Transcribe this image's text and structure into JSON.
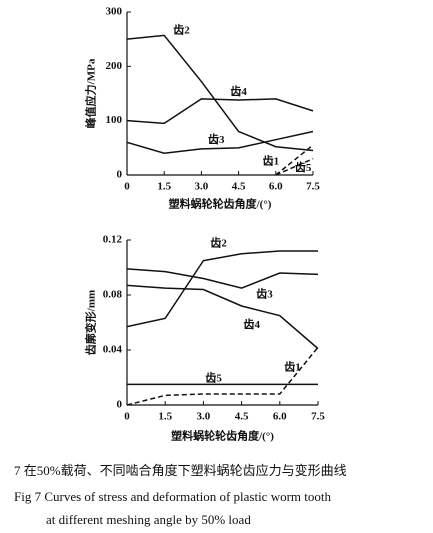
{
  "chart_data": [
    {
      "type": "line",
      "ylabel": "峰值应力/MPa",
      "xlabel": "塑料蜗轮轮齿角度/(°)",
      "x": [
        0,
        1.5,
        3,
        4.5,
        6,
        7.5
      ],
      "xlim": [
        0,
        7.5
      ],
      "xticks": [
        0,
        1.5,
        {
          "value": 3,
          "label": "3.0"
        },
        4.5,
        {
          "value": 6,
          "label": "6.0"
        },
        7.5
      ],
      "ylim": [
        0,
        300
      ],
      "yticks": [
        0,
        100,
        200,
        300
      ],
      "series": [
        {
          "name": "齿2",
          "color": "#111111",
          "dashed": false,
          "values": [
            250,
            257,
            172,
            80,
            52,
            45
          ]
        },
        {
          "name": "齿4",
          "color": "#111111",
          "dashed": false,
          "values": [
            100,
            95,
            140,
            138,
            140,
            118
          ]
        },
        {
          "name": "齿3",
          "color": "#111111",
          "dashed": false,
          "values": [
            60,
            40,
            48,
            50,
            65,
            80
          ]
        },
        {
          "name": "齿1",
          "color": "#111111",
          "dashed": true,
          "values": [
            null,
            null,
            null,
            null,
            0,
            55
          ]
        },
        {
          "name": "齿5",
          "color": "#111111",
          "dashed": true,
          "values": [
            null,
            null,
            null,
            null,
            0,
            30
          ]
        }
      ]
    },
    {
      "type": "line",
      "ylabel": "齿廓变形/mm",
      "xlabel": "塑料蜗轮轮齿角度/(°)",
      "x": [
        0,
        1.5,
        3,
        4.5,
        6,
        7.5
      ],
      "xlim": [
        0,
        7.5
      ],
      "xticks": [
        0,
        1.5,
        {
          "value": 3,
          "label": "3.0"
        },
        4.5,
        {
          "value": 6,
          "label": "6.0"
        },
        7.5
      ],
      "ylim": [
        0,
        0.12
      ],
      "yticks": [
        0,
        0.04,
        0.08,
        0.12
      ],
      "series": [
        {
          "name": "齿2",
          "color": "#111111",
          "dashed": false,
          "values": [
            0.057,
            0.063,
            0.105,
            0.11,
            0.112,
            0.112
          ]
        },
        {
          "name": "齿3",
          "color": "#111111",
          "dashed": false,
          "values": [
            0.099,
            0.097,
            0.092,
            0.085,
            0.096,
            0.095
          ]
        },
        {
          "name": "齿4",
          "color": "#111111",
          "dashed": false,
          "values": [
            0.087,
            0.085,
            0.084,
            0.072,
            0.065,
            0.041
          ]
        },
        {
          "name": "齿1",
          "color": "#111111",
          "dashed": true,
          "values": [
            0,
            0.007,
            0.008,
            0.008,
            0.008,
            0.042
          ]
        },
        {
          "name": "齿5",
          "color": "#111111",
          "dashed": false,
          "values": [
            0.015,
            0.015,
            0.015,
            0.015,
            0.015,
            0.015
          ]
        }
      ]
    }
  ],
  "caption": [
    "7  在50%载荷、不同啮合角度下塑料蜗轮齿应力与变形曲线",
    "Fig 7 Curves of stress and deformation of plastic worm tooth",
    "at different meshing angle by 50% load"
  ]
}
